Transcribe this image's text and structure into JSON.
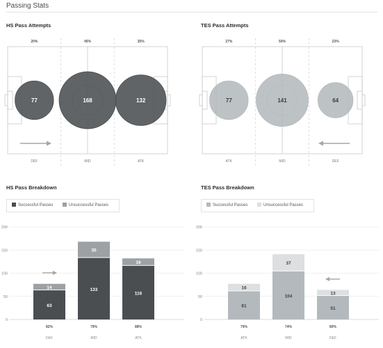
{
  "page": {
    "title": "Passing Stats"
  },
  "chart_data": [
    {
      "type": "bubble",
      "title": "HS Pass Attempts",
      "team": "hs",
      "categories": [
        "DEF",
        "MID",
        "ATK"
      ],
      "values": [
        77,
        168,
        132
      ],
      "percentages": [
        "20%",
        "45%",
        "35%"
      ],
      "attack_direction": "right",
      "color": "#4a4e51"
    },
    {
      "type": "bubble",
      "title": "TES Pass Attempts",
      "team": "tes",
      "categories": [
        "ATK",
        "MID",
        "DEF"
      ],
      "values": [
        77,
        141,
        64
      ],
      "percentages": [
        "27%",
        "50%",
        "23%"
      ],
      "attack_direction": "left",
      "color": "#b4b9bd"
    },
    {
      "type": "bar",
      "stacked": true,
      "title": "HS Pass Breakdown",
      "team": "hs",
      "categories": [
        "DEF",
        "MID",
        "ATK"
      ],
      "series": [
        {
          "name": "Successful Passes",
          "values": [
            63,
            133,
            116
          ],
          "color": "#4a4e51"
        },
        {
          "name": "Unsuccessful Passes",
          "values": [
            14,
            35,
            16
          ],
          "color": "#9da1a4"
        }
      ],
      "percentages": [
        "82%",
        "79%",
        "88%"
      ],
      "yticks": [
        0,
        50,
        100,
        150,
        200
      ],
      "ylim": [
        0,
        200
      ],
      "attack_direction": "right",
      "legend_position": "top-left"
    },
    {
      "type": "bar",
      "stacked": true,
      "title": "TES Pass Breakdown",
      "team": "tes",
      "categories": [
        "ATK",
        "MID",
        "DEF"
      ],
      "series": [
        {
          "name": "Successful Passes",
          "values": [
            61,
            104,
            51
          ],
          "color": "#b4b9bd"
        },
        {
          "name": "Unsuccessful Passes",
          "values": [
            16,
            37,
            13
          ],
          "color": "#dddfe1"
        }
      ],
      "percentages": [
        "79%",
        "74%",
        "80%"
      ],
      "yticks": [
        0,
        50,
        100,
        150,
        200
      ],
      "ylim": [
        0,
        200
      ],
      "attack_direction": "left",
      "legend_position": "top-left"
    }
  ]
}
